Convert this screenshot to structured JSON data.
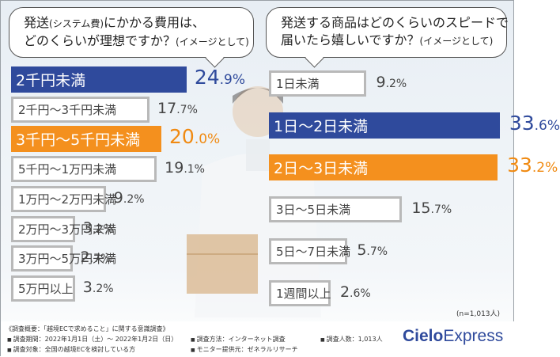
{
  "left_question": {
    "line1_a": "発送",
    "line1_paren": "(システム費)",
    "line1_b": "にかかる費用は、",
    "line2_a": "どのくらいが理想ですか？",
    "line2_paren": "(イメージとして)"
  },
  "right_question": {
    "line1": "発送する商品はどのくらいのスピードで",
    "line2_a": "届いたら嬉しいですか？",
    "line2_paren": "(イメージとして)"
  },
  "chart_data": [
    {
      "type": "bar",
      "title": "発送(システム費)にかかる費用は、どのくらいが理想ですか？(イメージとして)",
      "categories": [
        "2千円未満",
        "2千円～3千円未満",
        "3千円～5千円未満",
        "5千円～1万円未満",
        "1万円～2万円未満",
        "2万円～3万円未満",
        "3万円～5万円未満",
        "5万円以上"
      ],
      "values": [
        24.9,
        17.7,
        20.0,
        19.1,
        9.2,
        3.2,
        2.7,
        3.2
      ],
      "unit": "%",
      "highlight": [
        "blue",
        "gray",
        "orange",
        "gray",
        "gray",
        "gray",
        "gray",
        "gray"
      ],
      "colors": {
        "blue": "#2f4a9c",
        "orange": "#f4901e",
        "gray": "#b9b9b9"
      }
    },
    {
      "type": "bar",
      "title": "発送する商品はどのくらいのスピードで届いたら嬉しいですか？(イメージとして)",
      "categories": [
        "1日未満",
        "1日～2日未満",
        "2日～3日未満",
        "3日～5日未満",
        "5日～7日未満",
        "1週間以上"
      ],
      "values": [
        9.2,
        33.6,
        33.2,
        15.7,
        5.7,
        2.6
      ],
      "unit": "%",
      "highlight": [
        "gray",
        "blue",
        "orange",
        "gray",
        "gray",
        "gray"
      ],
      "colors": {
        "blue": "#2f4a9c",
        "orange": "#f4901e",
        "gray": "#b9b9b9"
      },
      "note": "(n=1,013人)"
    }
  ],
  "footer": {
    "title": "《調査概要：「越境ECで求めること」に関する意識調査》",
    "period": "調査期間：2022年1月1日（土）～ 2022年1月2日（日）",
    "target": "調査対象：全国の越境ECを検討している方",
    "method": "調査方法：インターネット調査",
    "provider": "モニター提供元：ゼネラルリサーチ",
    "count": "調査人数：1,013人"
  },
  "logo": {
    "bold": "Cielo",
    "light": "Express"
  }
}
